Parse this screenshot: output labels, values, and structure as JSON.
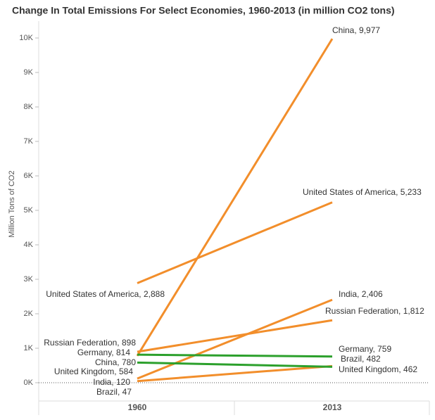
{
  "chart_data": {
    "type": "slope",
    "title": "Change In Total Emissions For Select Economies, 1960-2013 (in million CO2 tons)",
    "y_label": "Million Tons of CO2",
    "categories": [
      "1960",
      "2013"
    ],
    "series": [
      {
        "color": "#f28e2b",
        "values": [
          780,
          9977
        ],
        "value_labels": [
          "China, 780",
          "China, 9,977"
        ]
      },
      {
        "color": "#f28e2b",
        "values": [
          2888,
          5233
        ],
        "value_labels": [
          "United States of America, 2,888",
          "United States of America, 5,233"
        ]
      },
      {
        "color": "#f28e2b",
        "values": [
          120,
          2406
        ],
        "value_labels": [
          "India, 120",
          "India, 2,406"
        ]
      },
      {
        "color": "#f28e2b",
        "values": [
          898,
          1812
        ],
        "value_labels": [
          "Russian Federation, 898",
          "Russian Federation, 1,812"
        ]
      },
      {
        "color": "#2ca02c",
        "values": [
          814,
          759
        ],
        "value_labels": [
          "Germany, 814",
          "Germany, 759"
        ]
      },
      {
        "color": "#f28e2b",
        "values": [
          47,
          482
        ],
        "value_labels": [
          "Brazil, 47",
          "Brazil, 482"
        ]
      },
      {
        "color": "#2ca02c",
        "values": [
          584,
          462
        ],
        "value_labels": [
          "United Kingdom, 584",
          "United Kingdom, 462"
        ]
      }
    ],
    "ylim": [
      -500,
      10500
    ],
    "yticks": [
      {
        "value": 0,
        "label": "0K"
      },
      {
        "value": 1000,
        "label": "1K"
      },
      {
        "value": 2000,
        "label": "2K"
      },
      {
        "value": 3000,
        "label": "3K"
      },
      {
        "value": 4000,
        "label": "4K"
      },
      {
        "value": 5000,
        "label": "5K"
      },
      {
        "value": 6000,
        "label": "6K"
      },
      {
        "value": 7000,
        "label": "7K"
      },
      {
        "value": 8000,
        "label": "8K"
      },
      {
        "value": 9000,
        "label": "9K"
      },
      {
        "value": 10000,
        "label": "10K"
      }
    ]
  }
}
